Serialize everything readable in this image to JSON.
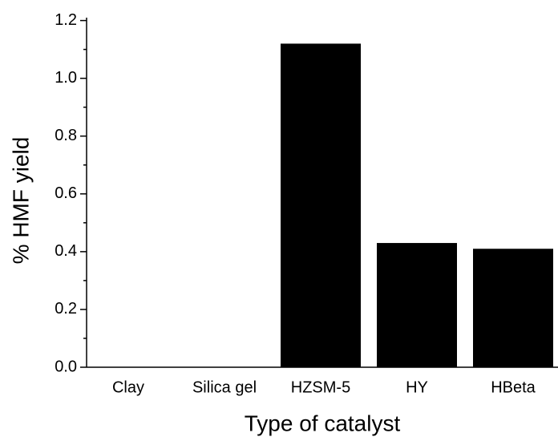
{
  "chart_data": {
    "type": "bar",
    "categories": [
      "Clay",
      "Silica gel",
      "HZSM-5",
      "HY",
      "HBeta"
    ],
    "values": [
      0,
      0,
      1.12,
      0.43,
      0.41
    ],
    "color": "#000000",
    "xlabel": "Type of catalyst",
    "ylabel": "% HMF yield",
    "ylim": [
      0,
      1.21
    ],
    "yticks": [
      {
        "value": 0,
        "label": "0.0"
      },
      {
        "value": 0.2,
        "label": "0.2"
      },
      {
        "value": 0.4,
        "label": "0.4"
      },
      {
        "value": 0.6,
        "label": "0.6"
      },
      {
        "value": 0.8,
        "label": "0.8"
      },
      {
        "value": 1.0,
        "label": "1.0"
      },
      {
        "value": 1.2,
        "label": "1.2"
      }
    ],
    "grid": false
  }
}
